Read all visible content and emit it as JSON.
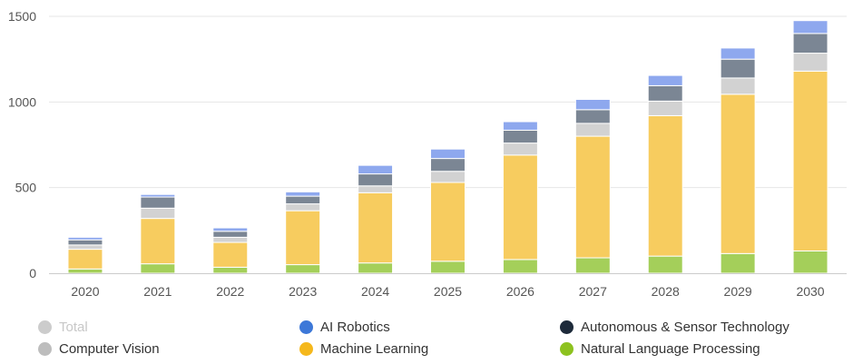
{
  "chart_data": {
    "type": "bar",
    "stacked": true,
    "categories": [
      "2020",
      "2021",
      "2022",
      "2023",
      "2024",
      "2025",
      "2026",
      "2027",
      "2028",
      "2029",
      "2030"
    ],
    "ylim": [
      0,
      1500
    ],
    "yticks": [
      0,
      500,
      1000,
      1500
    ],
    "ytick_labels": [
      "0",
      "500",
      "1000",
      "1500"
    ],
    "grid": true,
    "legend_position": "bottom",
    "series": [
      {
        "name": "Natural Language Processing",
        "color": "#a4cf5a",
        "values": [
          25,
          55,
          35,
          50,
          60,
          70,
          80,
          90,
          100,
          115,
          130
        ]
      },
      {
        "name": "Machine Learning",
        "color": "#f7cc5f",
        "values": [
          115,
          265,
          145,
          315,
          410,
          460,
          610,
          710,
          820,
          930,
          1050
        ]
      },
      {
        "name": "Computer Vision",
        "color": "#d2d2d2",
        "values": [
          25,
          60,
          30,
          40,
          40,
          65,
          70,
          75,
          85,
          95,
          105
        ]
      },
      {
        "name": "Autonomous & Sensor Technology",
        "color": "#7b8694",
        "values": [
          30,
          65,
          35,
          45,
          70,
          75,
          75,
          80,
          90,
          110,
          115
        ]
      },
      {
        "name": "AI Robotics",
        "color": "#8ea8ee",
        "values": [
          15,
          15,
          20,
          25,
          50,
          55,
          50,
          60,
          60,
          65,
          75
        ]
      },
      {
        "name": "Total",
        "color": "#d9d9d9",
        "hidden": true,
        "values": [
          210,
          460,
          265,
          475,
          630,
          725,
          885,
          1015,
          1155,
          1315,
          1475
        ]
      }
    ]
  },
  "legend": {
    "items": [
      {
        "label": "Total",
        "color": "#cccccc",
        "disabled": true
      },
      {
        "label": "AI Robotics",
        "color": "#3d78d8"
      },
      {
        "label": "Autonomous & Sensor Technology",
        "color": "#1d2a3a"
      },
      {
        "label": "Computer Vision",
        "color": "#bdbdbd"
      },
      {
        "label": "Machine Learning",
        "color": "#f5b81c"
      },
      {
        "label": "Natural Language Processing",
        "color": "#8dc21f"
      }
    ]
  }
}
